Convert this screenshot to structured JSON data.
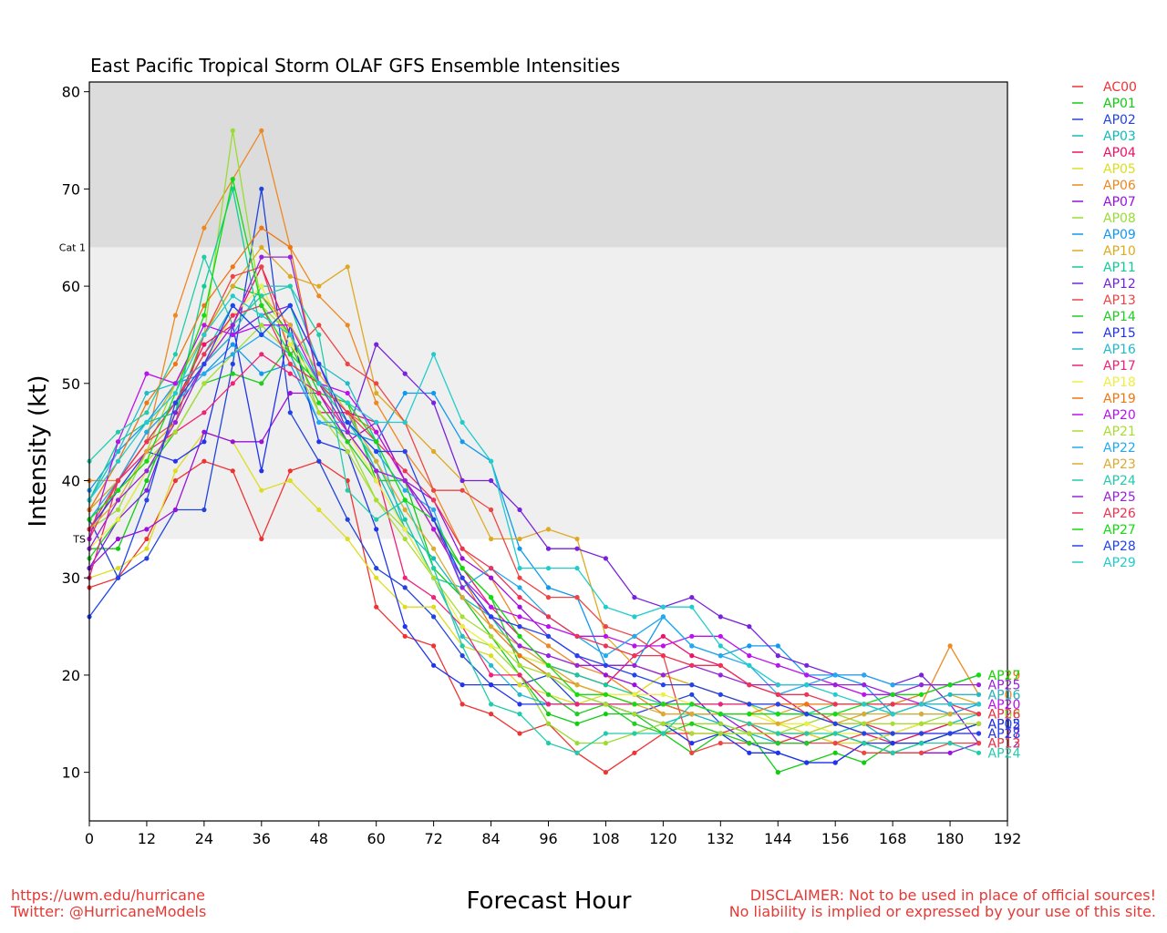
{
  "footer": {
    "url": "https://uwm.edu/hurricane",
    "twitter": "Twitter: @HurricaneModels",
    "disclaimer_1": "DISCLAIMER: Not to be used in place of official sources!",
    "disclaimer_2": "No liability is implied or expressed by your use of this site."
  },
  "chart_data": {
    "type": "line",
    "title": "East Pacific Tropical Storm OLAF GFS Ensemble Intensities",
    "xlabel": "Forecast Hour",
    "ylabel": "Intensity (kt)",
    "xlim": [
      0,
      192
    ],
    "ylim": [
      5,
      81
    ],
    "x_ticks": [
      0,
      12,
      24,
      36,
      48,
      60,
      72,
      84,
      96,
      108,
      120,
      132,
      144,
      156,
      168,
      180,
      192
    ],
    "y_ticks": [
      10,
      20,
      30,
      40,
      50,
      60,
      70,
      80
    ],
    "bands": [
      {
        "label": "TS",
        "from": 34,
        "to": 64,
        "color": "#efefef"
      },
      {
        "label": "Cat 1",
        "from": 64,
        "to": 81,
        "color": "#dcdcdc"
      }
    ],
    "legend_position": "right, outside plot",
    "x": [
      0,
      6,
      12,
      18,
      24,
      30,
      36,
      42,
      48,
      54,
      60,
      66,
      72,
      78,
      84,
      90,
      96,
      102,
      108,
      114,
      120,
      126,
      132,
      138,
      144,
      150,
      156,
      162,
      168,
      174,
      180,
      186
    ],
    "series": [
      {
        "name": "AC00",
        "color": "#ee3333",
        "values": [
          29,
          30,
          34,
          40,
          42,
          41,
          34,
          41,
          42,
          40,
          27,
          24,
          23,
          17,
          16,
          14,
          15,
          12,
          10,
          12,
          14,
          14,
          14,
          15,
          13,
          14,
          13,
          14,
          14,
          15,
          15,
          15
        ],
        "end_label": false
      },
      {
        "name": "AP01",
        "color": "#11cc11",
        "values": [
          33,
          33,
          40,
          47,
          55,
          60,
          59,
          55,
          49,
          48,
          40,
          40,
          31,
          28,
          24,
          20,
          16,
          15,
          16,
          16,
          14,
          12,
          14,
          14,
          10,
          11,
          12,
          11,
          13,
          13,
          14,
          15
        ],
        "end_label": false
      },
      {
        "name": "AP02",
        "color": "#2244dd",
        "values": [
          36,
          30,
          32,
          37,
          37,
          52,
          70,
          47,
          42,
          36,
          31,
          29,
          26,
          22,
          19,
          19,
          20,
          17,
          17,
          16,
          17,
          18,
          15,
          13,
          12,
          11,
          11,
          13,
          14,
          15,
          15,
          15
        ],
        "end_label": true
      },
      {
        "name": "AP03",
        "color": "#11bbbb",
        "values": [
          37,
          40,
          44,
          48,
          53,
          58,
          55,
          58,
          50,
          47,
          41,
          35,
          32,
          28,
          26,
          22,
          20,
          18,
          17,
          16,
          15,
          16,
          15,
          14,
          13,
          13,
          14,
          15,
          13,
          14,
          15,
          16
        ],
        "end_label": false
      },
      {
        "name": "AP04",
        "color": "#ee1166",
        "values": [
          34,
          40,
          45,
          48,
          54,
          56,
          62,
          55,
          47,
          47,
          46,
          40,
          36,
          31,
          27,
          24,
          21,
          20,
          19,
          22,
          24,
          22,
          21,
          19,
          18,
          16,
          15,
          14,
          13,
          14,
          15,
          15
        ],
        "end_label": false
      },
      {
        "name": "AP05",
        "color": "#dddd22",
        "values": [
          30,
          31,
          33,
          41,
          45,
          44,
          39,
          40,
          37,
          34,
          30,
          27,
          27,
          23,
          22,
          19,
          18,
          17,
          18,
          18,
          20,
          19,
          18,
          17,
          15,
          14,
          13,
          13,
          14,
          15,
          15,
          15
        ],
        "end_label": false
      },
      {
        "name": "AP06",
        "color": "#ee8822",
        "values": [
          40,
          40,
          44,
          57,
          66,
          71,
          76,
          64,
          59,
          56,
          48,
          43,
          39,
          33,
          30,
          25,
          23,
          21,
          20,
          18,
          16,
          16,
          16,
          15,
          14,
          14,
          15,
          15,
          16,
          17,
          23,
          18
        ],
        "end_label": true
      },
      {
        "name": "AP07",
        "color": "#9911dd",
        "values": [
          31,
          34,
          35,
          37,
          45,
          44,
          44,
          49,
          49,
          44,
          46,
          40,
          38,
          32,
          30,
          27,
          24,
          22,
          20,
          19,
          17,
          16,
          16,
          14,
          14,
          13,
          14,
          13,
          12,
          12,
          12,
          13
        ],
        "end_label": false
      },
      {
        "name": "AP08",
        "color": "#99dd33",
        "values": [
          35,
          37,
          43,
          50,
          55,
          76,
          58,
          55,
          47,
          44,
          38,
          35,
          30,
          24,
          23,
          20,
          15,
          13,
          13,
          14,
          15,
          15,
          15,
          14,
          14,
          15,
          16,
          15,
          14,
          15,
          16,
          16
        ],
        "end_label": true
      },
      {
        "name": "AP09",
        "color": "#1199ee",
        "values": [
          39,
          43,
          46,
          50,
          51,
          54,
          51,
          52,
          46,
          45,
          44,
          49,
          49,
          44,
          42,
          33,
          29,
          28,
          21,
          21,
          26,
          23,
          22,
          23,
          23,
          20,
          20,
          19,
          16,
          17,
          16,
          17
        ],
        "end_label": false
      },
      {
        "name": "AP10",
        "color": "#ddaa22",
        "values": [
          37,
          40,
          45,
          50,
          55,
          60,
          64,
          61,
          60,
          62,
          49,
          46,
          43,
          40,
          34,
          34,
          35,
          34,
          24,
          21,
          20,
          19,
          18,
          17,
          16,
          17,
          15,
          16,
          17,
          17,
          18,
          17
        ],
        "end_label": false
      },
      {
        "name": "AP11",
        "color": "#11cc99",
        "values": [
          38,
          44,
          46,
          47,
          60,
          70,
          55,
          58,
          50,
          46,
          42,
          36,
          30,
          29,
          26,
          22,
          21,
          20,
          19,
          18,
          17,
          16,
          16,
          16,
          16,
          16,
          17,
          17,
          16,
          16,
          16,
          16
        ],
        "end_label": false
      },
      {
        "name": "AP12",
        "color": "#7722dd",
        "values": [
          31,
          36,
          39,
          47,
          52,
          55,
          57,
          58,
          52,
          45,
          54,
          51,
          48,
          40,
          40,
          37,
          33,
          33,
          32,
          28,
          27,
          28,
          26,
          25,
          22,
          21,
          20,
          20,
          19,
          20,
          17,
          13
        ],
        "end_label": true
      },
      {
        "name": "AP13",
        "color": "#ee4444",
        "values": [
          34,
          40,
          44,
          46,
          55,
          61,
          62,
          53,
          56,
          52,
          50,
          46,
          39,
          39,
          37,
          30,
          28,
          28,
          25,
          24,
          22,
          12,
          13,
          13,
          13,
          13,
          13,
          12,
          12,
          12,
          13,
          13
        ],
        "end_label": true
      },
      {
        "name": "AP14",
        "color": "#22cc22",
        "values": [
          32,
          36,
          41,
          45,
          50,
          51,
          50,
          54,
          48,
          44,
          40,
          40,
          35,
          31,
          28,
          21,
          18,
          16,
          17,
          15,
          14,
          15,
          14,
          13,
          13,
          13,
          14,
          13,
          12,
          13,
          14,
          15
        ],
        "end_label": false
      },
      {
        "name": "AP15",
        "color": "#2233ee",
        "values": [
          35,
          39,
          43,
          42,
          44,
          56,
          41,
          56,
          44,
          43,
          35,
          25,
          21,
          19,
          19,
          17,
          17,
          17,
          17,
          16,
          15,
          13,
          14,
          12,
          12,
          11,
          11,
          13,
          13,
          13,
          14,
          15
        ],
        "end_label": true
      },
      {
        "name": "AP16",
        "color": "#22bbcc",
        "values": [
          38,
          43,
          49,
          50,
          52,
          55,
          60,
          60,
          52,
          50,
          44,
          35,
          30,
          24,
          21,
          18,
          17,
          17,
          17,
          17,
          17,
          17,
          17,
          17,
          16,
          16,
          16,
          16,
          17,
          17,
          18,
          18
        ],
        "end_label": true
      },
      {
        "name": "AP17",
        "color": "#ee2277",
        "values": [
          30,
          40,
          43,
          45,
          47,
          50,
          53,
          51,
          49,
          45,
          41,
          30,
          28,
          25,
          20,
          20,
          17,
          17,
          17,
          17,
          17,
          17,
          17,
          17,
          17,
          17,
          15,
          15,
          14,
          14,
          14,
          14
        ],
        "end_label": true
      },
      {
        "name": "AP18",
        "color": "#eeee44",
        "values": [
          33,
          36,
          41,
          46,
          52,
          57,
          60,
          54,
          50,
          45,
          40,
          35,
          30,
          25,
          23,
          22,
          21,
          19,
          18,
          18,
          18,
          17,
          16,
          16,
          15,
          15,
          14,
          14,
          14,
          15,
          15,
          15
        ],
        "end_label": false
      },
      {
        "name": "AP19",
        "color": "#ee7711",
        "values": [
          37,
          42,
          48,
          52,
          58,
          62,
          66,
          64,
          50,
          47,
          45,
          40,
          35,
          30,
          25,
          22,
          20,
          19,
          18,
          17,
          17,
          16,
          16,
          16,
          17,
          17,
          17,
          17,
          17,
          18,
          19,
          20
        ],
        "end_label": true
      },
      {
        "name": "AP20",
        "color": "#bb11ee",
        "values": [
          34,
          44,
          51,
          50,
          56,
          55,
          56,
          56,
          50,
          49,
          45,
          40,
          35,
          30,
          27,
          26,
          25,
          24,
          24,
          23,
          23,
          24,
          24,
          22,
          21,
          20,
          19,
          18,
          18,
          17,
          17,
          17
        ],
        "end_label": true
      },
      {
        "name": "AP21",
        "color": "#aadd33",
        "values": [
          36,
          39,
          42,
          45,
          50,
          53,
          56,
          53,
          47,
          43,
          38,
          34,
          30,
          26,
          24,
          21,
          20,
          18,
          17,
          16,
          15,
          14,
          14,
          14,
          14,
          14,
          15,
          15,
          15,
          15,
          15,
          15
        ],
        "end_label": false
      },
      {
        "name": "AP22",
        "color": "#22aaee",
        "values": [
          36,
          40,
          45,
          48,
          51,
          53,
          55,
          53,
          46,
          46,
          43,
          39,
          37,
          29,
          31,
          29,
          26,
          24,
          22,
          24,
          26,
          23,
          22,
          21,
          18,
          19,
          20,
          20,
          19,
          19,
          19,
          20
        ],
        "end_label": false
      },
      {
        "name": "AP23",
        "color": "#ddaa33",
        "values": [
          35,
          38,
          43,
          46,
          52,
          56,
          59,
          56,
          51,
          47,
          42,
          37,
          33,
          28,
          25,
          23,
          21,
          19,
          18,
          17,
          16,
          16,
          16,
          15,
          15,
          16,
          16,
          16,
          16,
          16,
          16,
          16
        ],
        "end_label": false
      },
      {
        "name": "AP24",
        "color": "#22ccaa",
        "values": [
          42,
          45,
          47,
          53,
          63,
          56,
          59,
          60,
          55,
          39,
          36,
          38,
          31,
          23,
          17,
          16,
          13,
          12,
          14,
          14,
          14,
          17,
          16,
          15,
          14,
          14,
          14,
          13,
          12,
          13,
          13,
          12
        ],
        "end_label": true
      },
      {
        "name": "AP25",
        "color": "#9922dd",
        "values": [
          33,
          38,
          41,
          46,
          52,
          56,
          63,
          63,
          50,
          45,
          41,
          40,
          36,
          29,
          26,
          23,
          22,
          21,
          21,
          21,
          20,
          21,
          20,
          19,
          19,
          19,
          19,
          19,
          18,
          19,
          19,
          19
        ],
        "end_label": true
      },
      {
        "name": "AP26",
        "color": "#ee3355",
        "values": [
          35,
          40,
          44,
          48,
          53,
          57,
          58,
          52,
          50,
          47,
          44,
          41,
          38,
          33,
          31,
          28,
          26,
          24,
          23,
          22,
          22,
          21,
          21,
          19,
          18,
          18,
          17,
          17,
          17,
          17,
          17,
          16
        ],
        "end_label": true
      },
      {
        "name": "AP27",
        "color": "#11dd11",
        "values": [
          36,
          39,
          42,
          49,
          57,
          71,
          58,
          53,
          50,
          48,
          44,
          38,
          36,
          31,
          28,
          24,
          21,
          18,
          18,
          17,
          17,
          17,
          16,
          16,
          16,
          16,
          16,
          17,
          18,
          18,
          19,
          20
        ],
        "end_label": true
      },
      {
        "name": "AP28",
        "color": "#2244ee",
        "values": [
          26,
          30,
          38,
          48,
          52,
          58,
          55,
          58,
          52,
          46,
          43,
          43,
          36,
          30,
          26,
          25,
          24,
          22,
          21,
          20,
          19,
          19,
          18,
          17,
          17,
          16,
          15,
          14,
          14,
          14,
          14,
          14
        ],
        "end_label": true
      },
      {
        "name": "AP29",
        "color": "#22cccc",
        "values": [
          38,
          42,
          46,
          49,
          55,
          59,
          57,
          55,
          50,
          48,
          46,
          46,
          53,
          46,
          42,
          31,
          31,
          31,
          27,
          26,
          27,
          27,
          23,
          21,
          19,
          19,
          18,
          17,
          16,
          17,
          17,
          17
        ],
        "end_label": false
      }
    ]
  }
}
